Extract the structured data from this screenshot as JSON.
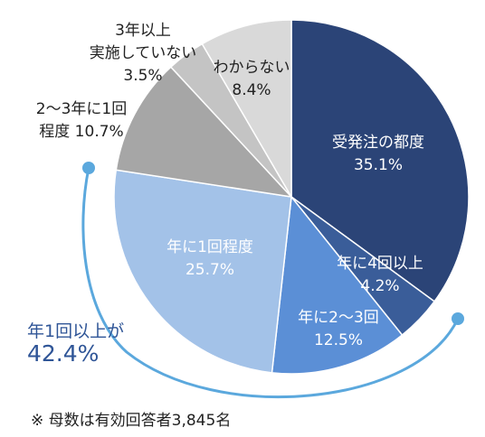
{
  "chart_data": {
    "type": "pie",
    "start_angle_deg": 0,
    "direction": "clockwise",
    "slices": [
      {
        "label_lines": [
          "受発注の都度",
          "35.1%"
        ],
        "value": 35.1,
        "color": "#2b4477",
        "text_color": "#ffffff"
      },
      {
        "label_lines": [
          "年に4回以上",
          "4.2%"
        ],
        "value": 4.2,
        "color": "#3a5d99",
        "text_color": "#ffffff"
      },
      {
        "label_lines": [
          "年に2～3回",
          "12.5%"
        ],
        "value": 12.5,
        "color": "#5b8fd6",
        "text_color": "#ffffff"
      },
      {
        "label_lines": [
          "年に1回程度",
          "25.7%"
        ],
        "value": 25.7,
        "color": "#a3c2e8",
        "text_color": "#ffffff"
      },
      {
        "label_lines": [
          "2～3年に1回",
          "程度 10.7%"
        ],
        "value": 10.7,
        "color": "#a6a6a6",
        "text_color": "#222222"
      },
      {
        "label_lines": [
          "3年以上",
          "実施していない",
          "3.5%"
        ],
        "value": 3.5,
        "color": "#c4c4c4",
        "text_color": "#222222"
      },
      {
        "label_lines": [
          "わからない",
          "8.4%"
        ],
        "value": 8.4,
        "color": "#d9d9d9",
        "text_color": "#222222"
      }
    ],
    "callout": {
      "line1": "年1回以上が",
      "line2": "42.4%",
      "color": "#2f5597",
      "arc_color": "#5ba8dd"
    },
    "note": "※ 母数は有効回答者3,845名"
  }
}
